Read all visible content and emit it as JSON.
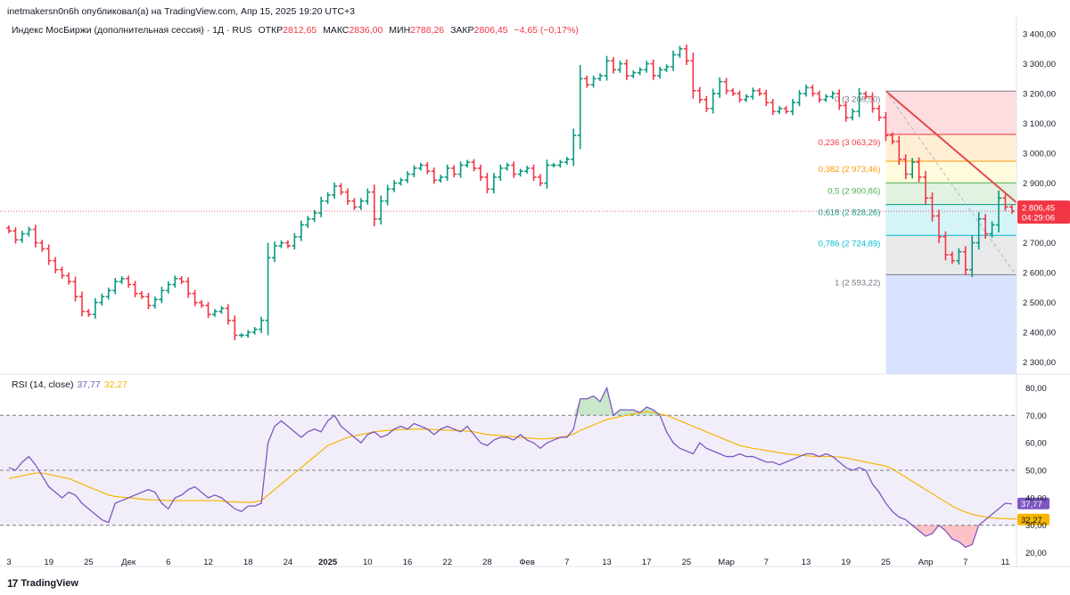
{
  "header": {
    "publish_line": "inetmakersn0n6h опубликовал(а) на TradingView.com, Апр 15, 2025 19:20 UTC+3"
  },
  "legend": {
    "symbol": "Индекс МосБиржи (дополнительная сессия) · 1Д · RUS",
    "open_label": "ОТКР",
    "open_value": "2812,65",
    "high_label": "МАКС",
    "high_value": "2836,00",
    "low_label": "МИН",
    "low_value": "2788,26",
    "close_label": "ЗАКР",
    "close_value": "2806,45",
    "change": "−4,65 (−0,17%)"
  },
  "rsi_legend": {
    "label": "RSI (14, close)",
    "rsi_value": "37,77",
    "ma_value": "32,27"
  },
  "branding": {
    "name": "TradingView"
  },
  "colors": {
    "up": "#089981",
    "down": "#f23645",
    "rsi": "#7e57c2",
    "rsi_ma": "#f7b500",
    "fib_line": "#e04a4a"
  },
  "chart_data": {
    "type": "bar",
    "title": "Индекс МосБиржи (дополнительная сессия) · 1Д · RUS",
    "price_axis": {
      "ylim": [
        2260,
        3460
      ],
      "ticks": [
        "3 400,00",
        "3 300,00",
        "3 200,00",
        "3 100,00",
        "3 000,00",
        "2 900,00",
        "2 800,00",
        "2 700,00",
        "2 600,00",
        "2 500,00",
        "2 400,00",
        "2 300,00"
      ],
      "tick_values": [
        3400,
        3300,
        3200,
        3100,
        3000,
        2900,
        2800,
        2700,
        2600,
        2500,
        2400,
        2300
      ]
    },
    "x_ticks": [
      {
        "label": "3",
        "i": 0
      },
      {
        "label": "19",
        "i": 6
      },
      {
        "label": "25",
        "i": 12
      },
      {
        "label": "Дек",
        "i": 18
      },
      {
        "label": "6",
        "i": 24
      },
      {
        "label": "12",
        "i": 30
      },
      {
        "label": "18",
        "i": 36
      },
      {
        "label": "24",
        "i": 42
      },
      {
        "label": "2025",
        "i": 48,
        "bold": true
      },
      {
        "label": "10",
        "i": 54
      },
      {
        "label": "16",
        "i": 60
      },
      {
        "label": "22",
        "i": 66
      },
      {
        "label": "28",
        "i": 72
      },
      {
        "label": "Фев",
        "i": 78
      },
      {
        "label": "7",
        "i": 84
      },
      {
        "label": "13",
        "i": 90
      },
      {
        "label": "17",
        "i": 96
      },
      {
        "label": "25",
        "i": 102
      },
      {
        "label": "Мар",
        "i": 108
      },
      {
        "label": "7",
        "i": 114
      },
      {
        "label": "13",
        "i": 120
      },
      {
        "label": "19",
        "i": 126
      },
      {
        "label": "25",
        "i": 132
      },
      {
        "label": "Апр",
        "i": 138
      },
      {
        "label": "7",
        "i": 144
      },
      {
        "label": "11",
        "i": 150
      }
    ],
    "closes": [
      2740,
      2710,
      2730,
      2745,
      2700,
      2680,
      2640,
      2610,
      2590,
      2570,
      2520,
      2470,
      2460,
      2500,
      2520,
      2540,
      2570,
      2580,
      2560,
      2530,
      2520,
      2490,
      2510,
      2540,
      2560,
      2580,
      2570,
      2530,
      2500,
      2490,
      2460,
      2470,
      2480,
      2440,
      2390,
      2390,
      2400,
      2410,
      2440,
      2650,
      2690,
      2700,
      2690,
      2720,
      2760,
      2780,
      2800,
      2840,
      2860,
      2890,
      2870,
      2840,
      2820,
      2840,
      2870,
      2780,
      2840,
      2880,
      2900,
      2910,
      2930,
      2950,
      2960,
      2940,
      2910,
      2920,
      2950,
      2930,
      2960,
      2970,
      2950,
      2920,
      2880,
      2920,
      2950,
      2960,
      2930,
      2940,
      2950,
      2920,
      2900,
      2960,
      2960,
      2970,
      2980,
      3060,
      3250,
      3230,
      3250,
      3260,
      3310,
      3280,
      3300,
      3260,
      3270,
      3280,
      3300,
      3260,
      3280,
      3290,
      3330,
      3350,
      3310,
      3210,
      3180,
      3150,
      3200,
      3240,
      3210,
      3200,
      3180,
      3190,
      3210,
      3200,
      3170,
      3140,
      3150,
      3140,
      3170,
      3200,
      3220,
      3200,
      3180,
      3190,
      3200,
      3160,
      3120,
      3140,
      3200,
      3190,
      3150,
      3120,
      3060,
      3040,
      2980,
      2930,
      2970,
      2920,
      2850,
      2790,
      2720,
      2660,
      2640,
      2670,
      2610,
      2700,
      2780,
      2730,
      2760,
      2850,
      2820,
      2806
    ],
    "rsi_axis": {
      "ylim": [
        15,
        85
      ],
      "ticks": [
        "80,00",
        "70,00",
        "60,00",
        "50,00",
        "40,00",
        "30,00",
        "20,00"
      ],
      "tick_values": [
        80,
        70,
        60,
        50,
        40,
        30,
        20
      ],
      "bands": [
        70,
        50,
        30
      ]
    },
    "rsi": [
      51,
      50,
      53,
      55,
      52,
      48,
      44,
      42,
      40,
      42,
      41,
      38,
      36,
      34,
      32,
      31,
      38,
      39,
      40,
      41,
      42,
      43,
      42,
      38,
      36,
      40,
      41,
      43,
      44,
      42,
      40,
      41,
      40,
      38,
      36,
      35,
      37,
      37,
      38,
      60,
      66,
      68,
      66,
      64,
      62,
      64,
      65,
      64,
      68,
      70,
      66,
      64,
      62,
      60,
      63,
      64,
      62,
      63,
      65,
      66,
      65,
      67,
      66,
      65,
      63,
      65,
      66,
      65,
      64,
      66,
      63,
      60,
      59,
      61,
      62,
      62,
      61,
      63,
      61,
      60,
      58,
      60,
      61,
      62,
      62,
      65,
      76,
      76,
      77,
      75,
      80,
      70,
      72,
      72,
      72,
      71,
      73,
      72,
      70,
      64,
      60,
      58,
      57,
      56,
      60,
      58,
      57,
      56,
      55,
      55,
      56,
      55,
      55,
      54,
      53,
      53,
      52,
      53,
      54,
      55,
      56,
      56,
      55,
      56,
      55,
      53,
      51,
      50,
      51,
      50,
      45,
      42,
      38,
      35,
      33,
      32,
      30,
      28,
      26,
      27,
      30,
      28,
      25,
      24,
      22,
      23,
      30,
      32,
      34,
      36,
      38,
      37.77
    ],
    "rsi_ma": [
      47,
      47.5,
      48,
      48.5,
      49,
      49,
      48.5,
      48,
      47.5,
      47,
      46,
      45,
      44,
      43,
      42,
      41,
      40.5,
      40.2,
      40,
      39.8,
      39.5,
      39.3,
      39.2,
      39.1,
      39,
      39,
      39,
      39,
      39,
      39,
      39,
      39,
      38.8,
      38.6,
      38.5,
      38.4,
      38.3,
      38.5,
      39,
      41,
      43,
      45,
      47,
      49,
      51,
      53,
      55,
      57,
      59,
      60,
      61,
      62,
      62.5,
      63,
      63.5,
      64,
      64.3,
      64.5,
      64.7,
      64.8,
      64.9,
      65,
      65,
      64.9,
      64.8,
      64.7,
      64.6,
      64.5,
      64.4,
      64.3,
      64,
      63.5,
      63,
      62.8,
      62.6,
      62.4,
      62.2,
      62,
      61.8,
      61.6,
      61.4,
      61.5,
      61.7,
      62,
      62.5,
      63.2,
      64.5,
      65.5,
      66.5,
      67.5,
      68.5,
      69,
      69.5,
      70,
      70.5,
      71,
      71.3,
      71,
      70.5,
      70,
      69,
      68,
      67,
      66,
      65,
      64,
      63,
      62,
      61,
      60,
      59,
      58.5,
      58,
      57.6,
      57.2,
      56.8,
      56.4,
      56,
      55.7,
      55.5,
      55.3,
      55.1,
      55,
      55,
      55,
      54.8,
      54.5,
      54,
      53.5,
      53,
      52.5,
      52,
      51.5,
      50.5,
      49,
      47.5,
      46,
      44.5,
      43,
      41.5,
      40,
      38.5,
      37,
      35.8,
      34.8,
      34,
      33.4,
      33,
      32.7,
      32.5,
      32.4,
      32.3,
      32.27
    ],
    "fibonacci": [
      {
        "label": "0 (3 208,50)",
        "level": 0,
        "price": 3208.5,
        "color": "#787b86"
      },
      {
        "label": "0,236 (3 063,29)",
        "level": 0.236,
        "price": 3063.29,
        "color": "#f23645"
      },
      {
        "label": "0,382 (2 973,46)",
        "level": 0.382,
        "price": 2973.46,
        "color": "#ff9800"
      },
      {
        "label": "0,5 (2 900,86)",
        "level": 0.5,
        "price": 2900.86,
        "color": "#4caf50"
      },
      {
        "label": "0,618 (2 828,26)",
        "level": 0.618,
        "price": 2828.26,
        "color": "#089981"
      },
      {
        "label": "0,786 (2 724,89)",
        "level": 0.786,
        "price": 2724.89,
        "color": "#00bcd4"
      },
      {
        "label": "1 (2 593,22)",
        "level": 1,
        "price": 2593.22,
        "color": "#787b86"
      }
    ],
    "last_price": {
      "value": "2 806,45",
      "countdown": "04:29:06"
    },
    "rsi_badges": {
      "rsi": "37,77",
      "ma": "32,27"
    }
  }
}
